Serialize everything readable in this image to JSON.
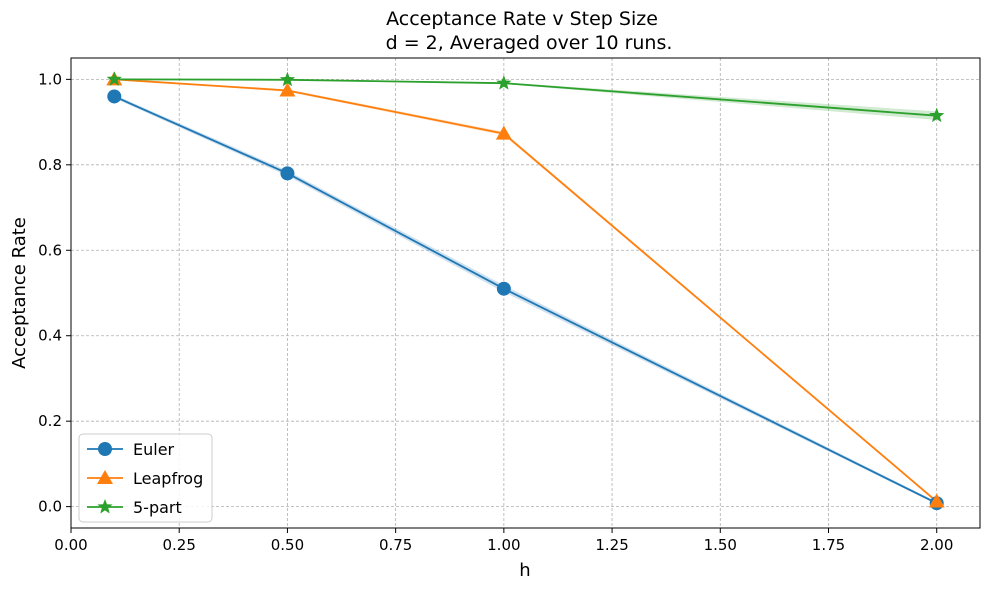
{
  "chart_data": {
    "type": "line",
    "title": "Acceptance Rate v Step Size",
    "subtitle": "d = 2, Averaged over 10 runs.",
    "xlabel": "h",
    "ylabel": "Acceptance Rate",
    "x": [
      0.1,
      0.5,
      1.0,
      2.0
    ],
    "xlim": [
      0.0,
      2.1
    ],
    "ylim": [
      -0.05,
      1.05
    ],
    "xticks": [
      "0.00",
      "0.25",
      "0.50",
      "0.75",
      "1.00",
      "1.25",
      "1.50",
      "1.75",
      "2.00"
    ],
    "yticks": [
      "0.0",
      "0.2",
      "0.4",
      "0.6",
      "0.8",
      "1.0"
    ],
    "grid": true,
    "legend_position": "lower-left",
    "series": [
      {
        "name": "Euler",
        "color": "#1f77b4",
        "marker": "circle",
        "values": [
          0.96,
          0.78,
          0.51,
          0.008
        ],
        "band": [
          0.004,
          0.006,
          0.008,
          0.003
        ]
      },
      {
        "name": "Leapfrog",
        "color": "#ff7f0e",
        "marker": "triangle",
        "values": [
          1.0,
          0.974,
          0.873,
          0.012
        ],
        "band": [
          0.0,
          0.003,
          0.004,
          0.002
        ]
      },
      {
        "name": "5-part",
        "color": "#2ca02c",
        "marker": "star",
        "values": [
          1.0,
          0.999,
          0.991,
          0.915
        ],
        "band": [
          0.0,
          0.001,
          0.002,
          0.01
        ]
      }
    ]
  }
}
